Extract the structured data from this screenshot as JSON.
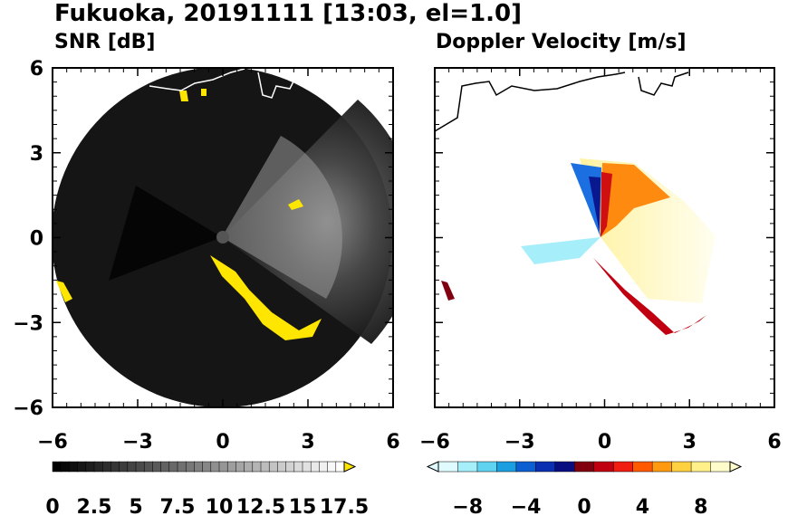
{
  "title": "Fukuoka, 20191111 [13:03, el=1.0]",
  "chart_data": [
    {
      "type": "heatmap",
      "title": "SNR [dB]",
      "xlim": [
        -6,
        6
      ],
      "ylim": [
        -6,
        6
      ],
      "xticks": [
        "−6",
        "−3",
        "0",
        "3",
        "6"
      ],
      "yticks": [
        "6",
        "3",
        "0",
        "−3",
        "−6"
      ],
      "colorbar": {
        "min": 0,
        "max": 17.5,
        "extend": "max",
        "labels": [
          "0",
          "2.5",
          "5",
          "7.5",
          "10",
          "12.5",
          "15",
          "17.5"
        ],
        "low_color": "#000000",
        "high_color": "#ffffff",
        "over_color": "#ffe600"
      },
      "radar_radius_km": 6
    },
    {
      "type": "heatmap",
      "title": "Doppler Velocity [m/s]",
      "xlim": [
        -6,
        6
      ],
      "ylim": [
        -6,
        6
      ],
      "xticks": [
        "−6",
        "−3",
        "0",
        "3",
        "6"
      ],
      "yticks": [
        "6",
        "3",
        "0",
        "−3",
        "−6"
      ],
      "colorbar": {
        "min": -10,
        "max": 10,
        "extend": "both",
        "labels": [
          "−8",
          "−4",
          "0",
          "4",
          "8"
        ],
        "neg_colors": [
          "#e0fbff",
          "#a6eefa",
          "#5fd3f0",
          "#1b9fe0",
          "#0b5fd0",
          "#0a2fb0",
          "#080e80"
        ],
        "pos_colors": [
          "#800010",
          "#c00010",
          "#f01e10",
          "#ff5a00",
          "#ff9a10",
          "#ffd040",
          "#fff08a",
          "#fffccc"
        ]
      }
    }
  ]
}
